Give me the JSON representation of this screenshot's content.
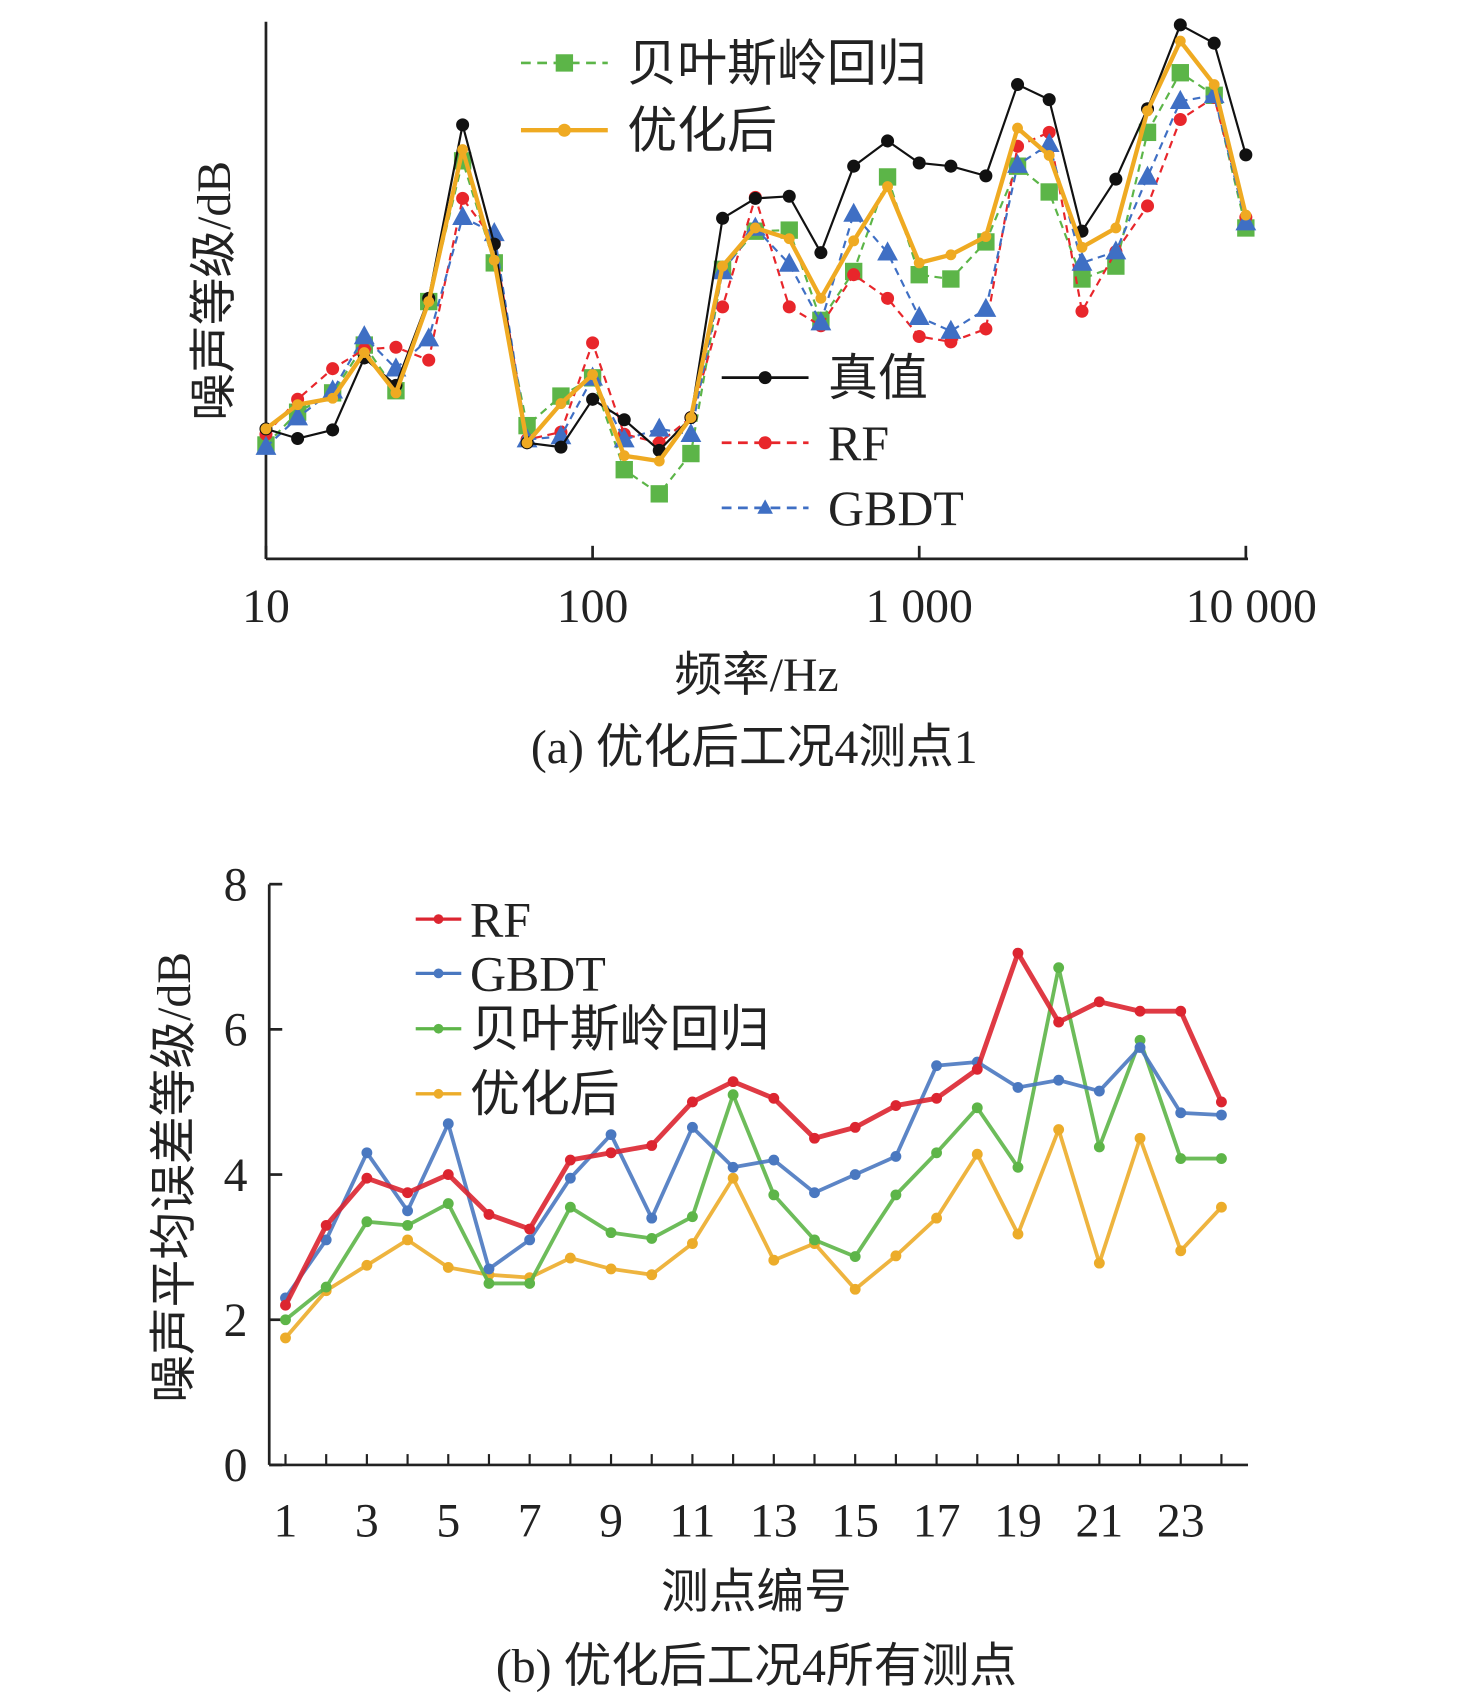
{
  "chart_data": [
    {
      "type": "line",
      "title": "(a) 优化后工况4测点1",
      "xlabel": "频率/Hz",
      "ylabel": "噪声等级/dB",
      "xscale": "log",
      "xlim": [
        10,
        10000
      ],
      "ylim": [
        0,
        100
      ],
      "y_units_note": "relative",
      "xtick_labels": [
        "10",
        "100",
        "1 000",
        "10 000"
      ],
      "xticks": [
        10,
        100,
        1000,
        10000
      ],
      "x": [
        10,
        12.5,
        16,
        20,
        25,
        31.5,
        40,
        50,
        63,
        80,
        100,
        125,
        160,
        200,
        250,
        315,
        400,
        500,
        630,
        800,
        1000,
        1250,
        1600,
        2000,
        2500,
        3150,
        4000,
        5000,
        6300,
        8000,
        10000
      ],
      "legend": [
        "贝叶斯岭回归",
        "优化后",
        "真值",
        "RF",
        "GBDT"
      ],
      "series": [
        {
          "name": "真值",
          "color": "#111111",
          "marker": "circle",
          "dash": false,
          "values": [
            24.2,
            22.4,
            24.0,
            37.4,
            32.3,
            48.5,
            80.8,
            58.6,
            21.6,
            20.8,
            29.7,
            25.9,
            20.2,
            26.3,
            63.4,
            67.1,
            67.5,
            57.0,
            73.1,
            77.8,
            73.7,
            73.1,
            71.3,
            88.3,
            85.5,
            61.0,
            70.7,
            83.8,
            99.4,
            96.0,
            75.2
          ]
        },
        {
          "name": "RF",
          "color": "#e8262b",
          "marker": "circle",
          "dash": true,
          "values": [
            23.2,
            29.7,
            35.4,
            39.0,
            39.4,
            37.0,
            67.1,
            59.2,
            22.2,
            23.6,
            40.2,
            23.2,
            21.6,
            26.3,
            46.9,
            67.3,
            46.9,
            43.4,
            52.9,
            48.5,
            41.4,
            40.4,
            42.8,
            76.8,
            79.4,
            46.1,
            57.2,
            65.7,
            81.8,
            85.9,
            63.6
          ]
        },
        {
          "name": "GBDT",
          "color": "#3f6fc4",
          "marker": "triangle",
          "dash": true,
          "values": [
            20.8,
            26.3,
            31.3,
            41.4,
            35.4,
            41.0,
            63.6,
            60.6,
            22.2,
            22.8,
            33.7,
            22.2,
            24.2,
            23.2,
            53.5,
            61.6,
            54.9,
            44.0,
            64.2,
            57.0,
            45.0,
            42.4,
            46.5,
            73.3,
            77.2,
            55.1,
            57.2,
            71.1,
            85.2,
            86.3,
            62.6
          ]
        },
        {
          "name": "贝叶斯岭回归",
          "color": "#5cb548",
          "marker": "square",
          "dash": true,
          "values": [
            21.2,
            27.3,
            30.9,
            39.8,
            31.3,
            47.9,
            74.1,
            55.1,
            24.8,
            30.3,
            33.7,
            16.6,
            12.1,
            19.6,
            53.9,
            61.0,
            61.2,
            44.4,
            53.5,
            71.1,
            52.9,
            52.1,
            59.0,
            73.1,
            68.3,
            52.1,
            54.5,
            79.4,
            90.5,
            86.3,
            61.6
          ]
        },
        {
          "name": "优化后",
          "color": "#efaa22",
          "marker": "circle",
          "dash": false,
          "values": [
            24.2,
            28.7,
            29.9,
            38.4,
            30.9,
            47.9,
            76.2,
            55.6,
            21.6,
            28.9,
            34.3,
            19.2,
            18.2,
            26.3,
            54.5,
            61.6,
            59.6,
            48.5,
            59.2,
            69.3,
            55.1,
            56.6,
            60.0,
            80.2,
            75.1,
            58.0,
            61.6,
            83.4,
            96.4,
            88.3,
            64.0
          ]
        }
      ]
    },
    {
      "type": "line",
      "title": "(b) 优化后工况4所有测点",
      "xlabel": "测点编号",
      "ylabel": "噪声平均误差等级/dB",
      "xlim": [
        1,
        24
      ],
      "ylim": [
        0,
        8
      ],
      "yticks": [
        "0",
        "2",
        "4",
        "6",
        "8"
      ],
      "xtick_labels": [
        "1",
        "3",
        "5",
        "7",
        "9",
        "11",
        "13",
        "15",
        "17",
        "19",
        "21",
        "23"
      ],
      "x": [
        1,
        2,
        3,
        4,
        5,
        6,
        7,
        8,
        9,
        10,
        11,
        12,
        13,
        14,
        15,
        16,
        17,
        18,
        19,
        20,
        21,
        22,
        23,
        24
      ],
      "legend": [
        "RF",
        "GBDT",
        "贝叶斯岭回归",
        "优化后"
      ],
      "series": [
        {
          "name": "RF",
          "color": "#dc2530",
          "values": [
            2.2,
            3.3,
            3.95,
            3.75,
            4.0,
            3.45,
            3.25,
            4.2,
            4.3,
            4.4,
            5.0,
            5.28,
            5.05,
            4.5,
            4.65,
            4.95,
            5.05,
            5.45,
            7.05,
            6.1,
            6.38,
            6.25,
            6.25,
            5.0
          ]
        },
        {
          "name": "GBDT",
          "color": "#4a78c0",
          "values": [
            2.3,
            3.1,
            4.3,
            3.5,
            4.7,
            2.7,
            3.1,
            3.95,
            4.55,
            3.4,
            4.65,
            4.1,
            4.2,
            3.75,
            4.0,
            4.25,
            5.5,
            5.55,
            5.2,
            5.3,
            5.15,
            5.75,
            4.85,
            4.82
          ]
        },
        {
          "name": "贝叶斯岭回归",
          "color": "#5db548",
          "values": [
            2.0,
            2.45,
            3.35,
            3.3,
            3.6,
            2.5,
            2.5,
            3.55,
            3.2,
            3.12,
            3.42,
            5.1,
            3.72,
            3.1,
            2.87,
            3.72,
            4.3,
            4.92,
            4.1,
            6.85,
            4.38,
            5.85,
            4.22,
            4.22
          ]
        },
        {
          "name": "优化后",
          "color": "#ecac2a",
          "values": [
            1.75,
            2.4,
            2.75,
            3.1,
            2.72,
            2.62,
            2.58,
            2.85,
            2.7,
            2.62,
            3.05,
            3.95,
            2.82,
            3.05,
            2.42,
            2.88,
            3.4,
            4.28,
            3.18,
            4.62,
            2.78,
            4.5,
            2.95,
            3.55
          ]
        }
      ]
    }
  ]
}
